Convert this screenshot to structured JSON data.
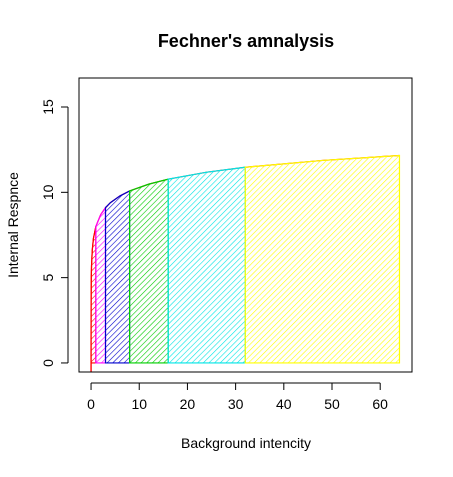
{
  "chart_data": {
    "type": "area",
    "title": "Fechner's amnalysis",
    "x_label": "Background intencity",
    "y_label": "Internal Respnce",
    "x": [
      0.0002,
      0.001,
      0.01,
      0.05,
      0.1,
      0.25,
      0.5,
      1,
      2,
      3,
      4,
      6,
      8,
      12,
      16,
      24,
      32,
      48,
      64
    ],
    "values": [
      -0.52,
      1.09,
      3.39,
      5.0,
      5.7,
      6.61,
      7.31,
      8,
      8.69,
      9.1,
      9.39,
      9.79,
      10.08,
      10.48,
      10.77,
      11.18,
      11.47,
      11.87,
      12.16
    ],
    "line_color": "#ff0000",
    "regions": [
      {
        "from": 0.0002,
        "to": 1,
        "color": "#ff0000"
      },
      {
        "from": 1,
        "to": 3,
        "color": "#ff00ff"
      },
      {
        "from": 3,
        "to": 8,
        "color": "#0000cd"
      },
      {
        "from": 8,
        "to": 16,
        "color": "#00cd00"
      },
      {
        "from": 16,
        "to": 32,
        "color": "#00e5e5"
      },
      {
        "from": 32,
        "to": 64,
        "color": "#ffff00"
      }
    ],
    "xlim": [
      -2.5,
      66.6
    ],
    "ylim": [
      -0.53,
      16.7
    ],
    "xticks": [
      0,
      10,
      20,
      30,
      40,
      50,
      60
    ],
    "yticks": [
      0,
      5,
      10,
      15
    ]
  }
}
